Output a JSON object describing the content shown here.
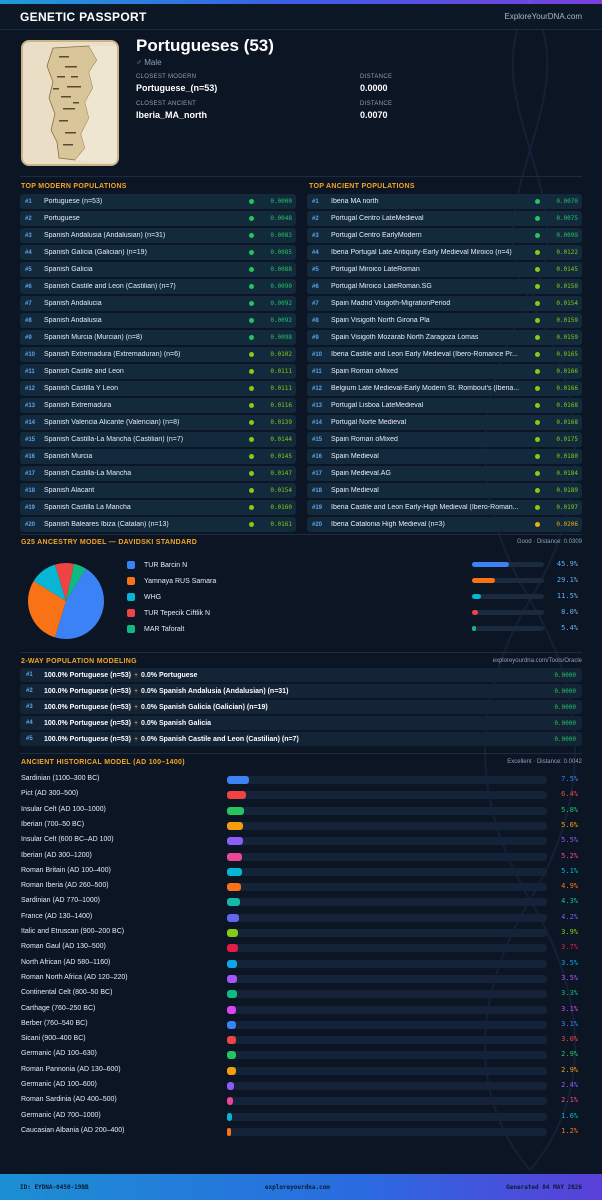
{
  "header": {
    "title": "GENETIC PASSPORT",
    "site": "ExploreYourDNA.com"
  },
  "profile": {
    "name": "Portugueses (53)",
    "sex": "♂ Male",
    "closest_modern_label": "CLOSEST MODERN",
    "closest_modern": "Portuguese_(n=53)",
    "distance_label": "DISTANCE",
    "modern_distance": "0.0000",
    "closest_ancient_label": "CLOSEST ANCIENT",
    "closest_ancient": "Iberia_MA_north",
    "ancient_distance": "0.0070"
  },
  "modern": {
    "title": "TOP MODERN POPULATIONS",
    "rows": [
      {
        "rank": "#1",
        "name": "Portuguese (n=53)",
        "dist": "0.0000",
        "color": "#22c55e"
      },
      {
        "rank": "#2",
        "name": "Portuguese",
        "dist": "0.0048",
        "color": "#22c55e"
      },
      {
        "rank": "#3",
        "name": "Spanish Andalusia (Andalusian) (n=31)",
        "dist": "0.0083",
        "color": "#22c55e"
      },
      {
        "rank": "#4",
        "name": "Spanish Galicia (Galician) (n=19)",
        "dist": "0.0085",
        "color": "#22c55e"
      },
      {
        "rank": "#5",
        "name": "Spanish Galicia",
        "dist": "0.0088",
        "color": "#22c55e"
      },
      {
        "rank": "#6",
        "name": "Spanish Castile and Leon (Castilian) (n=7)",
        "dist": "0.0090",
        "color": "#22c55e"
      },
      {
        "rank": "#7",
        "name": "Spanish Andalucia",
        "dist": "0.0092",
        "color": "#22c55e"
      },
      {
        "rank": "#8",
        "name": "Spanish Andalusia",
        "dist": "0.0092",
        "color": "#22c55e"
      },
      {
        "rank": "#9",
        "name": "Spanish Murcia (Murcian) (n=8)",
        "dist": "0.0098",
        "color": "#22c55e"
      },
      {
        "rank": "#10",
        "name": "Spanish Extremadura (Extremaduran) (n=6)",
        "dist": "0.0102",
        "color": "#84cc16"
      },
      {
        "rank": "#11",
        "name": "Spanish Castile and Leon",
        "dist": "0.0111",
        "color": "#84cc16"
      },
      {
        "rank": "#12",
        "name": "Spanish Castilla Y Leon",
        "dist": "0.0111",
        "color": "#84cc16"
      },
      {
        "rank": "#13",
        "name": "Spanish Extremadura",
        "dist": "0.0116",
        "color": "#84cc16"
      },
      {
        "rank": "#14",
        "name": "Spanish Valencia Alicante (Valencian) (n=8)",
        "dist": "0.0139",
        "color": "#84cc16"
      },
      {
        "rank": "#15",
        "name": "Spanish Castilla-La Mancha (Castilian) (n=7)",
        "dist": "0.0144",
        "color": "#84cc16"
      },
      {
        "rank": "#16",
        "name": "Spanish Murcia",
        "dist": "0.0145",
        "color": "#84cc16"
      },
      {
        "rank": "#17",
        "name": "Spanish Castilla-La Mancha",
        "dist": "0.0147",
        "color": "#84cc16"
      },
      {
        "rank": "#18",
        "name": "Spanish Alacant",
        "dist": "0.0154",
        "color": "#84cc16"
      },
      {
        "rank": "#19",
        "name": "Spanish Castilla La Mancha",
        "dist": "0.0160",
        "color": "#84cc16"
      },
      {
        "rank": "#20",
        "name": "Spanish Baleares Ibiza (Catalan) (n=13)",
        "dist": "0.0161",
        "color": "#84cc16"
      }
    ]
  },
  "ancient": {
    "title": "TOP ANCIENT POPULATIONS",
    "rows": [
      {
        "rank": "#1",
        "name": "Iberia MA north",
        "dist": "0.0070",
        "color": "#22c55e"
      },
      {
        "rank": "#2",
        "name": "Portugal Centro LateMedieval",
        "dist": "0.0075",
        "color": "#22c55e"
      },
      {
        "rank": "#3",
        "name": "Portugal Centro EarlyModern",
        "dist": "0.0099",
        "color": "#22c55e"
      },
      {
        "rank": "#4",
        "name": "Iberia Portugal Late Antiquity-Early Medieval Miroico (n=4)",
        "dist": "0.0122",
        "color": "#84cc16"
      },
      {
        "rank": "#5",
        "name": "Portugal Miroico LateRoman",
        "dist": "0.0145",
        "color": "#84cc16"
      },
      {
        "rank": "#6",
        "name": "Portugal Miroico LateRoman.SG",
        "dist": "0.0150",
        "color": "#84cc16"
      },
      {
        "rank": "#7",
        "name": "Spain Madrid Visigoth-MigrationPeriod",
        "dist": "0.0154",
        "color": "#84cc16"
      },
      {
        "rank": "#8",
        "name": "Spain Visigoth North Girona Pla",
        "dist": "0.0159",
        "color": "#84cc16"
      },
      {
        "rank": "#9",
        "name": "Spain Visigoth Mozarab North Zaragoza Lomas",
        "dist": "0.0159",
        "color": "#84cc16"
      },
      {
        "rank": "#10",
        "name": "Iberia Castile and Leon Early Medieval (Ibero-Romance Pr...",
        "dist": "0.0165",
        "color": "#84cc16"
      },
      {
        "rank": "#11",
        "name": "Spain Roman oMixed",
        "dist": "0.0166",
        "color": "#84cc16"
      },
      {
        "rank": "#12",
        "name": "Belgium Late Medieval-Early Modern St. Rombout's (Iberia...",
        "dist": "0.0166",
        "color": "#84cc16"
      },
      {
        "rank": "#13",
        "name": "Portugal Lisboa LateMedieval",
        "dist": "0.0168",
        "color": "#84cc16"
      },
      {
        "rank": "#14",
        "name": "Portugal Norte Medieval",
        "dist": "0.0168",
        "color": "#84cc16"
      },
      {
        "rank": "#15",
        "name": "Spain Roman oMixed",
        "dist": "0.0175",
        "color": "#84cc16"
      },
      {
        "rank": "#16",
        "name": "Spain Medieval",
        "dist": "0.0180",
        "color": "#84cc16"
      },
      {
        "rank": "#17",
        "name": "Spain Medieval.AG",
        "dist": "0.0184",
        "color": "#84cc16"
      },
      {
        "rank": "#18",
        "name": "Spain Medieval",
        "dist": "0.0189",
        "color": "#84cc16"
      },
      {
        "rank": "#19",
        "name": "Iberia Castile and Leon Early-High Medieval (Ibero-Roman...",
        "dist": "0.0197",
        "color": "#84cc16"
      },
      {
        "rank": "#20",
        "name": "Iberia Catalonia High Medieval (n=3)",
        "dist": "0.0206",
        "color": "#eab308"
      }
    ]
  },
  "ancestry": {
    "title": "G25 ANCESTRY MODEL — DAVIDSKI STANDARD",
    "status": "Good · Distance: 0.0309",
    "components": [
      {
        "name": "TUR Barcin N",
        "pct": "45.9%",
        "value": 45.9,
        "color": "#3b82f6"
      },
      {
        "name": "Yamnaya RUS Samara",
        "pct": "29.1%",
        "value": 29.1,
        "color": "#f97316"
      },
      {
        "name": "WHG",
        "pct": "11.5%",
        "value": 11.5,
        "color": "#06b6d4"
      },
      {
        "name": "TUR Tepecik Ciftlik N",
        "pct": "8.0%",
        "value": 8.0,
        "color": "#ef4444"
      },
      {
        "name": "MAR Taforalt",
        "pct": "5.4%",
        "value": 5.4,
        "color": "#10b981"
      }
    ]
  },
  "twoway": {
    "title": "2-WAY POPULATION MODELING",
    "source": "exploreyourdna.com/Tools/Oracle",
    "rows": [
      {
        "rank": "#1",
        "a": "100.0% Portuguese (n=53)",
        "b": "0.0% Portuguese",
        "dist": "0.0000"
      },
      {
        "rank": "#2",
        "a": "100.0% Portuguese (n=53)",
        "b": "0.0% Spanish Andalusia (Andalusian) (n=31)",
        "dist": "0.0000"
      },
      {
        "rank": "#3",
        "a": "100.0% Portuguese (n=53)",
        "b": "0.0% Spanish Galicia (Galician) (n=19)",
        "dist": "0.0000"
      },
      {
        "rank": "#4",
        "a": "100.0% Portuguese (n=53)",
        "b": "0.0% Spanish Galicia",
        "dist": "0.0000"
      },
      {
        "rank": "#5",
        "a": "100.0% Portuguese (n=53)",
        "b": "0.0% Spanish Castile and Leon (Castilian) (n=7)",
        "dist": "0.0000"
      }
    ]
  },
  "historical": {
    "title": "ANCIENT HISTORICAL MODEL (AD 100–1400)",
    "status": "Excellent · Distance: 0.0042",
    "rows": [
      {
        "name": "Sardinian (1100–300 BC)",
        "pct": "7.5%",
        "value": 7.5,
        "color": "#3b82f6"
      },
      {
        "name": "Pict (AD 300–500)",
        "pct": "6.4%",
        "value": 6.4,
        "color": "#ef4444"
      },
      {
        "name": "Insular Celt (AD 100–1000)",
        "pct": "5.8%",
        "value": 5.8,
        "color": "#22c55e"
      },
      {
        "name": "Iberian (700–50 BC)",
        "pct": "5.6%",
        "value": 5.6,
        "color": "#f59e0b"
      },
      {
        "name": "Insular Celt (600 BC–AD 100)",
        "pct": "5.5%",
        "value": 5.5,
        "color": "#8b5cf6"
      },
      {
        "name": "Iberian (AD 300–1200)",
        "pct": "5.2%",
        "value": 5.2,
        "color": "#ec4899"
      },
      {
        "name": "Roman Britain (AD 100–400)",
        "pct": "5.1%",
        "value": 5.1,
        "color": "#06b6d4"
      },
      {
        "name": "Roman Iberia (AD 260–500)",
        "pct": "4.9%",
        "value": 4.9,
        "color": "#f97316"
      },
      {
        "name": "Sardinian (AD 770–1000)",
        "pct": "4.3%",
        "value": 4.3,
        "color": "#14b8a6"
      },
      {
        "name": "France (AD 130–1400)",
        "pct": "4.2%",
        "value": 4.2,
        "color": "#6366f1"
      },
      {
        "name": "Italic and Etruscan (900–200 BC)",
        "pct": "3.9%",
        "value": 3.9,
        "color": "#84cc16"
      },
      {
        "name": "Roman Gaul (AD 130–500)",
        "pct": "3.7%",
        "value": 3.7,
        "color": "#e11d48"
      },
      {
        "name": "North African (AD 580–1160)",
        "pct": "3.5%",
        "value": 3.5,
        "color": "#0ea5e9"
      },
      {
        "name": "Roman North Africa (AD 120–220)",
        "pct": "3.5%",
        "value": 3.5,
        "color": "#a855f7"
      },
      {
        "name": "Continental Celt (800–50 BC)",
        "pct": "3.3%",
        "value": 3.3,
        "color": "#10b981"
      },
      {
        "name": "Carthage (760–250 BC)",
        "pct": "3.1%",
        "value": 3.1,
        "color": "#d946ef"
      },
      {
        "name": "Berber (760–540 BC)",
        "pct": "3.1%",
        "value": 3.1,
        "color": "#3b82f6"
      },
      {
        "name": "Sicani (900–400 BC)",
        "pct": "3.0%",
        "value": 3.0,
        "color": "#ef4444"
      },
      {
        "name": "Germanic (AD 100–630)",
        "pct": "2.9%",
        "value": 2.9,
        "color": "#22c55e"
      },
      {
        "name": "Roman Pannonia (AD 130–600)",
        "pct": "2.9%",
        "value": 2.9,
        "color": "#f59e0b"
      },
      {
        "name": "Germanic (AD 100–600)",
        "pct": "2.4%",
        "value": 2.4,
        "color": "#8b5cf6"
      },
      {
        "name": "Roman Sardinia (AD 400–500)",
        "pct": "2.1%",
        "value": 2.1,
        "color": "#ec4899"
      },
      {
        "name": "Germanic (AD 700–1000)",
        "pct": "1.6%",
        "value": 1.6,
        "color": "#06b6d4"
      },
      {
        "name": "Caucasian Albania (AD 200–400)",
        "pct": "1.2%",
        "value": 1.2,
        "color": "#f97316"
      }
    ]
  },
  "footer": {
    "id": "ID: EYDNA-0450-19BB",
    "site": "exploreyourdna.com",
    "generated": "Generated 04 MAY 2026"
  }
}
